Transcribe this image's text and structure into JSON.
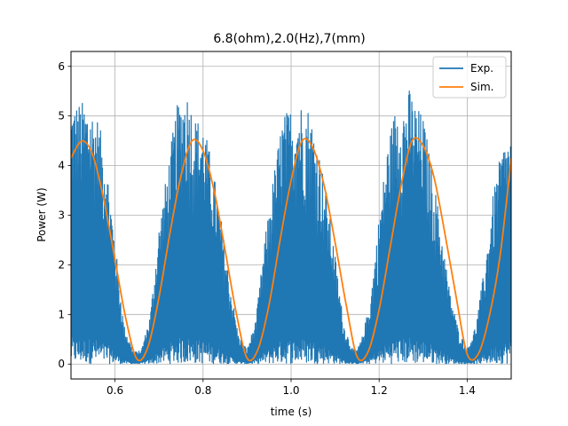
{
  "chart_data": {
    "type": "line",
    "title": "6.8(ohm),2.0(Hz),7(mm)",
    "xlabel": "time (s)",
    "ylabel": "Power (W)",
    "xlim": [
      0.5,
      1.5
    ],
    "ylim": [
      -0.3,
      6.3
    ],
    "xticks": [
      0.6,
      0.8,
      1.0,
      1.2,
      1.4
    ],
    "xtick_labels": [
      "0.6",
      "0.8",
      "1.0",
      "1.2",
      "1.4"
    ],
    "yticks": [
      0,
      1,
      2,
      3,
      4,
      5,
      6
    ],
    "ytick_labels": [
      "0",
      "1",
      "2",
      "3",
      "4",
      "5",
      "6"
    ],
    "grid": true,
    "legend_position": "top-right",
    "series": [
      {
        "name": "Exp.",
        "color": "#1f77b4",
        "description_of_shape": "noisy oscillating signal with envelope following Sim., peaks up to ~5.6",
        "x": [
          0.5,
          0.52,
          0.54,
          0.56,
          0.58,
          0.6,
          0.62,
          0.64,
          0.65,
          0.66,
          0.68,
          0.7,
          0.72,
          0.74,
          0.76,
          0.77,
          0.78,
          0.8,
          0.82,
          0.84,
          0.86,
          0.88,
          0.9,
          0.92,
          0.94,
          0.96,
          0.98,
          1.0,
          1.02,
          1.04,
          1.06,
          1.08,
          1.1,
          1.12,
          1.14,
          1.15,
          1.16,
          1.18,
          1.2,
          1.22,
          1.24,
          1.26,
          1.27,
          1.28,
          1.3,
          1.32,
          1.34,
          1.36,
          1.38,
          1.4,
          1.42,
          1.44,
          1.46,
          1.48,
          1.5
        ],
        "peak_envelope": [
          5.3,
          5.3,
          5.3,
          5.0,
          4.2,
          2.5,
          0.8,
          0.3,
          0.25,
          0.3,
          1.0,
          2.8,
          4.0,
          5.2,
          5.6,
          5.4,
          5.0,
          4.9,
          4.1,
          3.0,
          1.7,
          0.6,
          0.3,
          0.9,
          2.5,
          3.8,
          5.0,
          5.2,
          5.3,
          5.2,
          4.5,
          3.5,
          2.2,
          0.8,
          0.3,
          0.3,
          0.5,
          1.3,
          3.0,
          4.5,
          5.3,
          5.3,
          5.6,
          5.3,
          5.0,
          4.0,
          2.8,
          1.5,
          0.7,
          0.3,
          0.8,
          2.0,
          3.5,
          4.4,
          4.7
        ]
      },
      {
        "name": "Sim.",
        "color": "#ff7f0e",
        "x": [
          0.5,
          0.525,
          0.55,
          0.575,
          0.6,
          0.625,
          0.65,
          0.675,
          0.7,
          0.725,
          0.75,
          0.775,
          0.8,
          0.825,
          0.85,
          0.875,
          0.9,
          0.925,
          0.95,
          0.975,
          1.0,
          1.025,
          1.05,
          1.075,
          1.1,
          1.125,
          1.15,
          1.175,
          1.2,
          1.225,
          1.25,
          1.275,
          1.3,
          1.325,
          1.35,
          1.375,
          1.4,
          1.425,
          1.45,
          1.475,
          1.5
        ],
        "y": [
          4.15,
          4.5,
          4.2,
          3.3,
          2.1,
          0.9,
          0.1,
          0.35,
          1.35,
          2.65,
          3.8,
          4.5,
          4.3,
          3.5,
          2.3,
          1.05,
          0.12,
          0.3,
          1.2,
          2.5,
          3.7,
          4.5,
          4.35,
          3.6,
          2.45,
          1.2,
          0.15,
          0.25,
          1.1,
          2.35,
          3.6,
          4.5,
          4.4,
          3.75,
          2.6,
          1.35,
          0.2,
          0.2,
          0.95,
          2.2,
          4.15
        ]
      }
    ]
  }
}
